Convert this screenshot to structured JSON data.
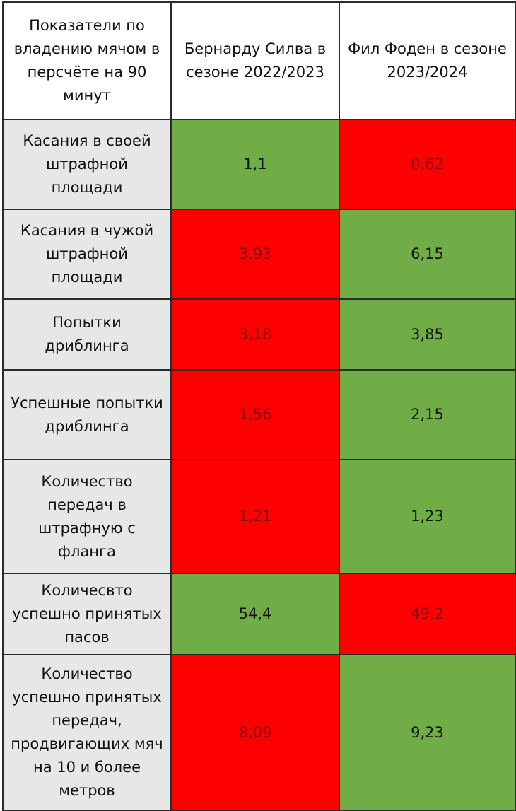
{
  "table": {
    "headers": [
      "Показатели по владению мячом в персчёте на 90 минут",
      "Бернарду Силва в сезоне 2022/2023",
      "Фил Фоден в сезоне 2023/2024"
    ],
    "rows": [
      {
        "label": "Касания в своей штрафной площади",
        "silva": "1,1",
        "foden": "0,62"
      },
      {
        "label": "Касания в чужой штрафной площади",
        "silva": "3,93",
        "foden": "6,15"
      },
      {
        "label": "Попытки дриблинга",
        "silva": "3,18",
        "foden": "3,85"
      },
      {
        "label": "Успешные попытки дриблинга",
        "silva": "1,56",
        "foden": "2,15"
      },
      {
        "label": "Количество передач в штрафную с фланга",
        "silva": "1,21",
        "foden": "1,23"
      },
      {
        "label": "Количесвто успешно принятых пасов",
        "silva": "54,4",
        "foden": "49,2"
      },
      {
        "label": "Количество успешно принятых передач, продвигающих мяч на 10 и более метров",
        "silva": "8,09",
        "foden": "9,23"
      }
    ]
  },
  "colors": {
    "better": "#70ad47",
    "worse": "#ff0000",
    "label_bg": "#e7e7e7",
    "grid": "#2b2b2b"
  }
}
